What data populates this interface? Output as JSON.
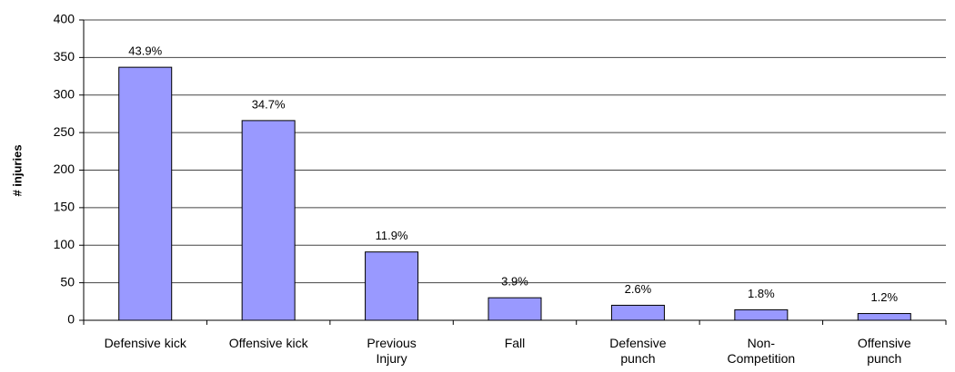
{
  "chart_data": {
    "type": "bar",
    "y_label": "# injuries",
    "categories": [
      "Defensive kick",
      "Offensive kick",
      "Previous\nInjury",
      "Fall",
      "Defensive\npunch",
      "Non-\nCompetition",
      "Offensive\npunch"
    ],
    "values": [
      337,
      266,
      91,
      30,
      20,
      14,
      9
    ],
    "percent_labels": [
      "43.9%",
      "34.7%",
      "11.9%",
      "3.9%",
      "2.6%",
      "1.8%",
      "1.2%"
    ],
    "color": "#9999ff",
    "ylim": [
      0,
      400
    ],
    "yticks": [
      0,
      50,
      100,
      150,
      200,
      250,
      300,
      350,
      400
    ],
    "grid": true
  }
}
